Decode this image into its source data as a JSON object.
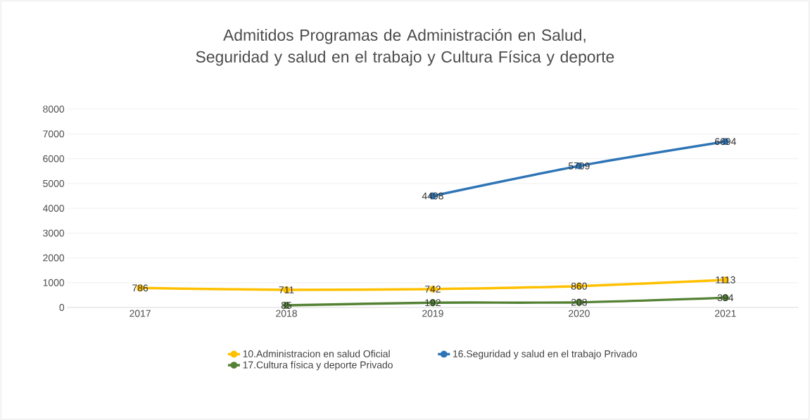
{
  "chart_data": {
    "type": "line",
    "title": "Admitidos Programas de Administración en Salud, Seguridad y salud en el trabajo y Cultura Física y deporte",
    "categories": [
      "2017",
      "2018",
      "2019",
      "2020",
      "2021"
    ],
    "series": [
      {
        "name": "10.Administracion en salud Oficial",
        "color": "#ffc000",
        "values": [
          786,
          711,
          742,
          860,
          1113
        ]
      },
      {
        "name": "16.Seguridad y salud en el trabajo Privado",
        "color": "#2e75b6",
        "values": [
          null,
          null,
          4498,
          5709,
          6694
        ]
      },
      {
        "name": "17.Cultura física y deporte Privado",
        "color": "#548235",
        "values": [
          null,
          85,
          192,
          208,
          394
        ]
      }
    ],
    "ylim": [
      0,
      8000
    ],
    "yticks": [
      0,
      1000,
      2000,
      3000,
      4000,
      5000,
      6000,
      7000,
      8000
    ],
    "grid": "y",
    "legend": "bottom",
    "marker": "circle",
    "data_labels": true
  }
}
